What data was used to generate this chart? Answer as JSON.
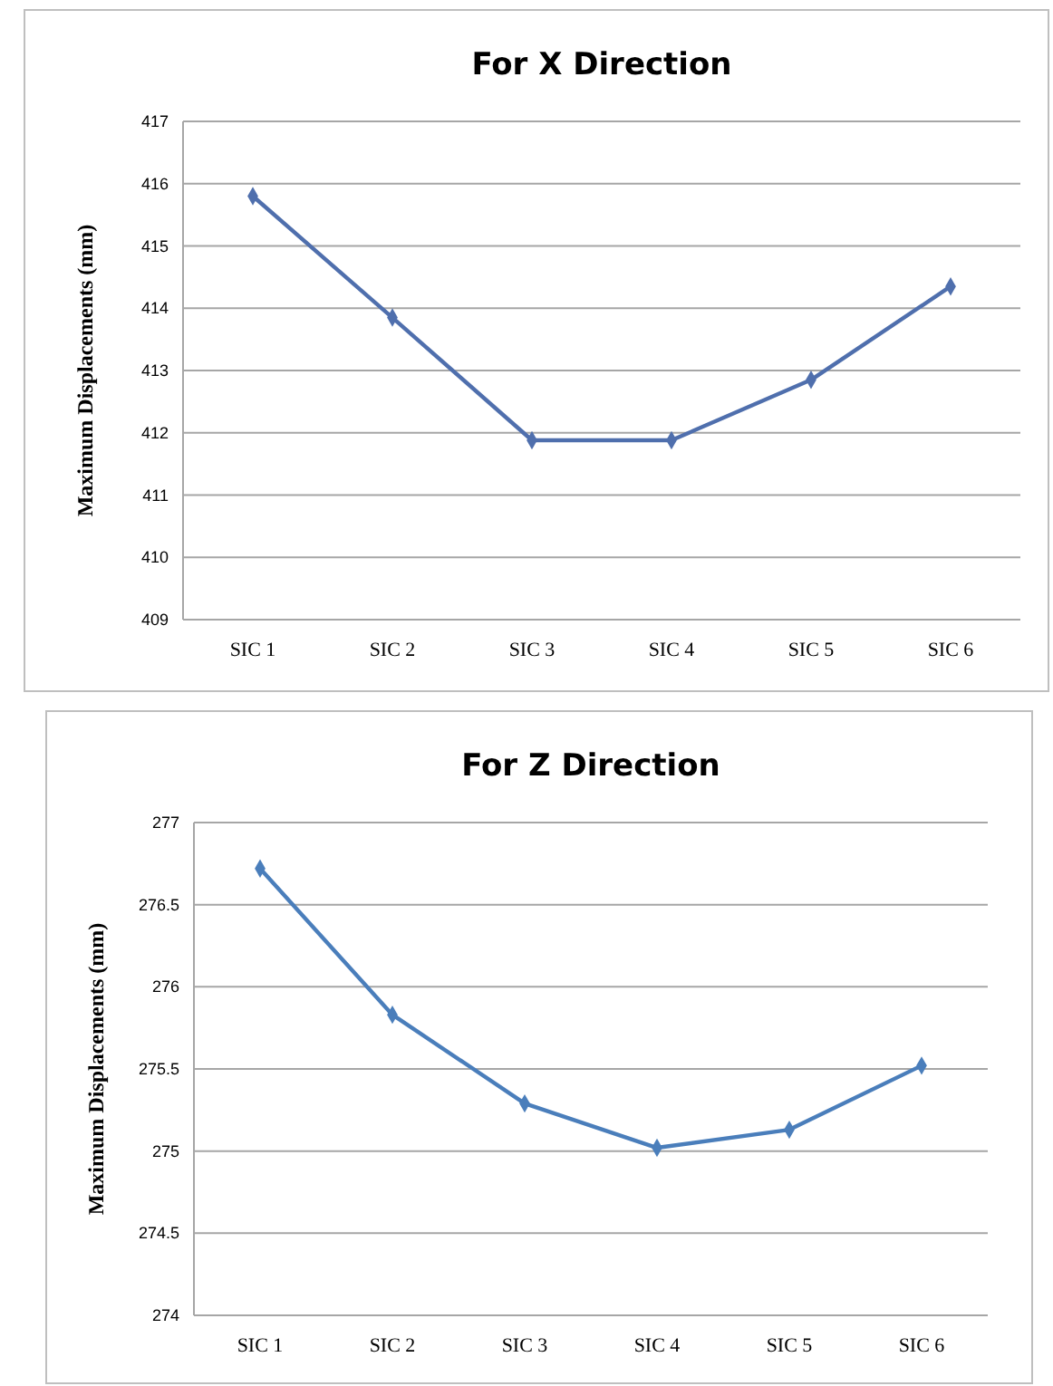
{
  "chart_data": [
    {
      "type": "line",
      "title": "For X Direction",
      "ylabel": "Maximum Displacements (mm)",
      "categories": [
        "SIC 1",
        "SIC 2",
        "SIC 3",
        "SIC 4",
        "SIC 5",
        "SIC 6"
      ],
      "series": [
        {
          "color": "#4f6fad",
          "values": [
            415.8,
            413.85,
            411.88,
            411.88,
            412.85,
            414.35
          ]
        }
      ],
      "ylim": [
        409,
        417
      ],
      "yticks": [
        409,
        410,
        411,
        412,
        413,
        414,
        415,
        416,
        417
      ],
      "grid": "y",
      "marker": "diamond"
    },
    {
      "type": "line",
      "title": "For Z Direction",
      "ylabel": "Maximum Displacements (mm)",
      "categories": [
        "SIC 1",
        "SIC 2",
        "SIC 3",
        "SIC 4",
        "SIC 5",
        "SIC 6"
      ],
      "series": [
        {
          "color": "#4a7ebb",
          "values": [
            276.72,
            275.83,
            275.29,
            275.02,
            275.13,
            275.52
          ]
        }
      ],
      "ylim": [
        274,
        277
      ],
      "yticks": [
        274,
        274.5,
        275,
        275.5,
        276,
        276.5,
        277
      ],
      "grid": "y",
      "marker": "diamond"
    }
  ]
}
